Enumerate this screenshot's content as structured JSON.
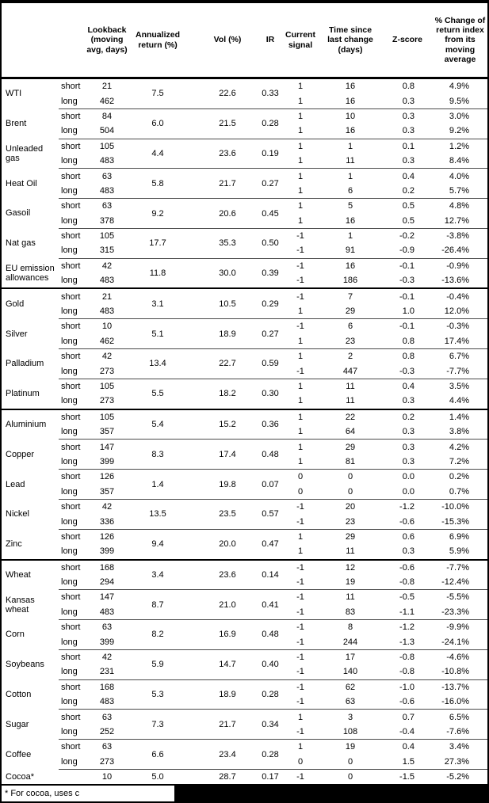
{
  "header": {
    "columns": [
      {
        "label": "Lookback\n(moving\navg, days)"
      },
      {
        "label": "Annualized\nreturn (%)"
      },
      {
        "label": "Vol (%)"
      },
      {
        "label": "IR"
      },
      {
        "label": "Current\nsignal"
      },
      {
        "label": "Time since\nlast change\n(days)"
      },
      {
        "label": "Z-score"
      },
      {
        "label": "% Change of\nreturn index\nfrom its\nmoving\naverage"
      }
    ]
  },
  "groups": [
    [
      {
        "name": "WTI",
        "annualized_return": "7.5",
        "vol": "22.6",
        "ir": "0.33",
        "rows": [
          {
            "period": "short",
            "lookback": "21",
            "signal": "1",
            "time_since": "16",
            "z_score": "0.8",
            "pct_change": "4.9%"
          },
          {
            "period": "long",
            "lookback": "462",
            "signal": "1",
            "time_since": "16",
            "z_score": "0.3",
            "pct_change": "9.5%"
          }
        ]
      },
      {
        "name": "Brent",
        "annualized_return": "6.0",
        "vol": "21.5",
        "ir": "0.28",
        "rows": [
          {
            "period": "short",
            "lookback": "84",
            "signal": "1",
            "time_since": "10",
            "z_score": "0.3",
            "pct_change": "3.0%"
          },
          {
            "period": "long",
            "lookback": "504",
            "signal": "1",
            "time_since": "16",
            "z_score": "0.3",
            "pct_change": "9.2%"
          }
        ]
      },
      {
        "name": "Unleaded gas",
        "annualized_return": "4.4",
        "vol": "23.6",
        "ir": "0.19",
        "rows": [
          {
            "period": "short",
            "lookback": "105",
            "signal": "1",
            "time_since": "1",
            "z_score": "0.1",
            "pct_change": "1.2%"
          },
          {
            "period": "long",
            "lookback": "483",
            "signal": "1",
            "time_since": "11",
            "z_score": "0.3",
            "pct_change": "8.4%"
          }
        ]
      },
      {
        "name": "Heat Oil",
        "annualized_return": "5.8",
        "vol": "21.7",
        "ir": "0.27",
        "rows": [
          {
            "period": "short",
            "lookback": "63",
            "signal": "1",
            "time_since": "1",
            "z_score": "0.4",
            "pct_change": "4.0%"
          },
          {
            "period": "long",
            "lookback": "483",
            "signal": "1",
            "time_since": "6",
            "z_score": "0.2",
            "pct_change": "5.7%"
          }
        ]
      },
      {
        "name": "Gasoil",
        "annualized_return": "9.2",
        "vol": "20.6",
        "ir": "0.45",
        "rows": [
          {
            "period": "short",
            "lookback": "63",
            "signal": "1",
            "time_since": "5",
            "z_score": "0.5",
            "pct_change": "4.8%"
          },
          {
            "period": "long",
            "lookback": "378",
            "signal": "1",
            "time_since": "16",
            "z_score": "0.5",
            "pct_change": "12.7%"
          }
        ]
      },
      {
        "name": "Nat gas",
        "annualized_return": "17.7",
        "vol": "35.3",
        "ir": "0.50",
        "rows": [
          {
            "period": "short",
            "lookback": "105",
            "signal": "-1",
            "time_since": "1",
            "z_score": "-0.2",
            "pct_change": "-3.8%"
          },
          {
            "period": "long",
            "lookback": "315",
            "signal": "-1",
            "time_since": "91",
            "z_score": "-0.9",
            "pct_change": "-26.4%"
          }
        ]
      },
      {
        "name": "EU emission allowances",
        "annualized_return": "11.8",
        "vol": "30.0",
        "ir": "0.39",
        "rows": [
          {
            "period": "short",
            "lookback": "42",
            "signal": "-1",
            "time_since": "16",
            "z_score": "-0.1",
            "pct_change": "-0.9%"
          },
          {
            "period": "long",
            "lookback": "483",
            "signal": "-1",
            "time_since": "186",
            "z_score": "-0.3",
            "pct_change": "-13.6%"
          }
        ]
      }
    ],
    [
      {
        "name": "Gold",
        "annualized_return": "3.1",
        "vol": "10.5",
        "ir": "0.29",
        "rows": [
          {
            "period": "short",
            "lookback": "21",
            "signal": "-1",
            "time_since": "7",
            "z_score": "-0.1",
            "pct_change": "-0.4%"
          },
          {
            "period": "long",
            "lookback": "483",
            "signal": "1",
            "time_since": "29",
            "z_score": "1.0",
            "pct_change": "12.0%"
          }
        ]
      },
      {
        "name": "Silver",
        "annualized_return": "5.1",
        "vol": "18.9",
        "ir": "0.27",
        "rows": [
          {
            "period": "short",
            "lookback": "10",
            "signal": "-1",
            "time_since": "6",
            "z_score": "-0.1",
            "pct_change": "-0.3%"
          },
          {
            "period": "long",
            "lookback": "462",
            "signal": "1",
            "time_since": "23",
            "z_score": "0.8",
            "pct_change": "17.4%"
          }
        ]
      },
      {
        "name": "Palladium",
        "annualized_return": "13.4",
        "vol": "22.7",
        "ir": "0.59",
        "rows": [
          {
            "period": "short",
            "lookback": "42",
            "signal": "1",
            "time_since": "2",
            "z_score": "0.8",
            "pct_change": "6.7%"
          },
          {
            "period": "long",
            "lookback": "273",
            "signal": "-1",
            "time_since": "447",
            "z_score": "-0.3",
            "pct_change": "-7.7%"
          }
        ]
      },
      {
        "name": "Platinum",
        "annualized_return": "5.5",
        "vol": "18.2",
        "ir": "0.30",
        "rows": [
          {
            "period": "short",
            "lookback": "105",
            "signal": "1",
            "time_since": "11",
            "z_score": "0.4",
            "pct_change": "3.5%"
          },
          {
            "period": "long",
            "lookback": "273",
            "signal": "1",
            "time_since": "11",
            "z_score": "0.3",
            "pct_change": "4.4%"
          }
        ]
      }
    ],
    [
      {
        "name": "Aluminium",
        "annualized_return": "5.4",
        "vol": "15.2",
        "ir": "0.36",
        "rows": [
          {
            "period": "short",
            "lookback": "105",
            "signal": "1",
            "time_since": "22",
            "z_score": "0.2",
            "pct_change": "1.4%"
          },
          {
            "period": "long",
            "lookback": "357",
            "signal": "1",
            "time_since": "64",
            "z_score": "0.3",
            "pct_change": "3.8%"
          }
        ]
      },
      {
        "name": "Copper",
        "annualized_return": "8.3",
        "vol": "17.4",
        "ir": "0.48",
        "rows": [
          {
            "period": "short",
            "lookback": "147",
            "signal": "1",
            "time_since": "29",
            "z_score": "0.3",
            "pct_change": "4.2%"
          },
          {
            "period": "long",
            "lookback": "399",
            "signal": "1",
            "time_since": "81",
            "z_score": "0.3",
            "pct_change": "7.2%"
          }
        ]
      },
      {
        "name": "Lead",
        "annualized_return": "1.4",
        "vol": "19.8",
        "ir": "0.07",
        "rows": [
          {
            "period": "short",
            "lookback": "126",
            "signal": "0",
            "time_since": "0",
            "z_score": "0.0",
            "pct_change": "0.2%"
          },
          {
            "period": "long",
            "lookback": "357",
            "signal": "0",
            "time_since": "0",
            "z_score": "0.0",
            "pct_change": "0.7%"
          }
        ]
      },
      {
        "name": "Nickel",
        "annualized_return": "13.5",
        "vol": "23.5",
        "ir": "0.57",
        "rows": [
          {
            "period": "short",
            "lookback": "42",
            "signal": "-1",
            "time_since": "20",
            "z_score": "-1.2",
            "pct_change": "-10.0%"
          },
          {
            "period": "long",
            "lookback": "336",
            "signal": "-1",
            "time_since": "23",
            "z_score": "-0.6",
            "pct_change": "-15.3%"
          }
        ]
      },
      {
        "name": "Zinc",
        "annualized_return": "9.4",
        "vol": "20.0",
        "ir": "0.47",
        "rows": [
          {
            "period": "short",
            "lookback": "126",
            "signal": "1",
            "time_since": "29",
            "z_score": "0.6",
            "pct_change": "6.9%"
          },
          {
            "period": "long",
            "lookback": "399",
            "signal": "1",
            "time_since": "11",
            "z_score": "0.3",
            "pct_change": "5.9%"
          }
        ]
      }
    ],
    [
      {
        "name": "Wheat",
        "annualized_return": "3.4",
        "vol": "23.6",
        "ir": "0.14",
        "rows": [
          {
            "period": "short",
            "lookback": "168",
            "signal": "-1",
            "time_since": "12",
            "z_score": "-0.6",
            "pct_change": "-7.7%"
          },
          {
            "period": "long",
            "lookback": "294",
            "signal": "-1",
            "time_since": "19",
            "z_score": "-0.8",
            "pct_change": "-12.4%"
          }
        ]
      },
      {
        "name": "Kansas wheat",
        "annualized_return": "8.7",
        "vol": "21.0",
        "ir": "0.41",
        "rows": [
          {
            "period": "short",
            "lookback": "147",
            "signal": "-1",
            "time_since": "11",
            "z_score": "-0.5",
            "pct_change": "-5.5%"
          },
          {
            "period": "long",
            "lookback": "483",
            "signal": "-1",
            "time_since": "83",
            "z_score": "-1.1",
            "pct_change": "-23.3%"
          }
        ]
      },
      {
        "name": "Corn",
        "annualized_return": "8.2",
        "vol": "16.9",
        "ir": "0.48",
        "rows": [
          {
            "period": "short",
            "lookback": "63",
            "signal": "-1",
            "time_since": "8",
            "z_score": "-1.2",
            "pct_change": "-9.9%"
          },
          {
            "period": "long",
            "lookback": "399",
            "signal": "-1",
            "time_since": "244",
            "z_score": "-1.3",
            "pct_change": "-24.1%"
          }
        ]
      },
      {
        "name": "Soybeans",
        "annualized_return": "5.9",
        "vol": "14.7",
        "ir": "0.40",
        "rows": [
          {
            "period": "short",
            "lookback": "42",
            "signal": "-1",
            "time_since": "17",
            "z_score": "-0.8",
            "pct_change": "-4.6%"
          },
          {
            "period": "long",
            "lookback": "231",
            "signal": "-1",
            "time_since": "140",
            "z_score": "-0.8",
            "pct_change": "-10.8%"
          }
        ]
      },
      {
        "name": "Cotton",
        "annualized_return": "5.3",
        "vol": "18.9",
        "ir": "0.28",
        "rows": [
          {
            "period": "short",
            "lookback": "168",
            "signal": "-1",
            "time_since": "62",
            "z_score": "-1.0",
            "pct_change": "-13.7%"
          },
          {
            "period": "long",
            "lookback": "483",
            "signal": "-1",
            "time_since": "63",
            "z_score": "-0.6",
            "pct_change": "-16.0%"
          }
        ]
      },
      {
        "name": "Sugar",
        "annualized_return": "7.3",
        "vol": "21.7",
        "ir": "0.34",
        "rows": [
          {
            "period": "short",
            "lookback": "63",
            "signal": "1",
            "time_since": "3",
            "z_score": "0.7",
            "pct_change": "6.5%"
          },
          {
            "period": "long",
            "lookback": "252",
            "signal": "-1",
            "time_since": "108",
            "z_score": "-0.4",
            "pct_change": "-7.6%"
          }
        ]
      },
      {
        "name": "Coffee",
        "annualized_return": "6.6",
        "vol": "23.4",
        "ir": "0.28",
        "rows": [
          {
            "period": "short",
            "lookback": "63",
            "signal": "1",
            "time_since": "19",
            "z_score": "0.4",
            "pct_change": "3.4%"
          },
          {
            "period": "long",
            "lookback": "273",
            "signal": "0",
            "time_since": "0",
            "z_score": "1.5",
            "pct_change": "27.3%"
          }
        ]
      },
      {
        "name": "Cocoa*",
        "annualized_return": "5.0",
        "vol": "28.7",
        "ir": "0.17",
        "rows": [
          {
            "period": "",
            "lookback": "10",
            "signal": "-1",
            "time_since": "0",
            "z_score": "-1.5",
            "pct_change": "-5.2%"
          }
        ]
      }
    ]
  ],
  "footer": {
    "note": "* For cocoa, uses c"
  }
}
